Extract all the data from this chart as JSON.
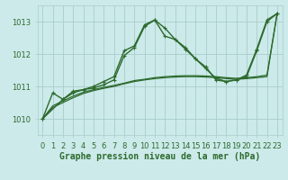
{
  "background_color": "#cceaea",
  "grid_color": "#aacccc",
  "line_color": "#2d6a2d",
  "x_labels": [
    "0",
    "1",
    "2",
    "3",
    "4",
    "5",
    "6",
    "7",
    "8",
    "9",
    "10",
    "11",
    "12",
    "13",
    "14",
    "15",
    "16",
    "17",
    "18",
    "19",
    "20",
    "21",
    "22",
    "23"
  ],
  "xlabel": "Graphe pression niveau de la mer (hPa)",
  "ylim": [
    1009.5,
    1013.5
  ],
  "yticks": [
    1010,
    1011,
    1012,
    1013
  ],
  "series": [
    {
      "x": [
        0,
        1,
        2,
        3,
        4,
        5,
        6,
        7,
        8,
        9,
        10,
        11,
        12,
        13,
        14,
        15,
        16,
        17,
        18,
        19,
        20,
        21,
        22,
        23
      ],
      "y": [
        1010.0,
        1010.8,
        1010.6,
        1010.85,
        1010.9,
        1011.0,
        1011.15,
        1011.3,
        1012.1,
        1012.25,
        1012.9,
        1013.05,
        1012.8,
        1012.45,
        1012.2,
        1011.85,
        1011.6,
        1011.2,
        1011.15,
        1011.2,
        1011.35,
        1012.15,
        1013.05,
        1013.25
      ],
      "marker": true,
      "lw": 1.0
    },
    {
      "x": [
        0,
        2,
        3,
        4,
        5,
        6,
        7,
        8,
        9,
        10,
        11,
        12,
        13,
        14,
        15,
        16,
        17,
        18,
        19,
        20,
        21,
        22,
        23
      ],
      "y": [
        1010.0,
        1010.6,
        1010.8,
        1010.9,
        1010.95,
        1011.05,
        1011.2,
        1011.95,
        1012.2,
        1012.85,
        1013.05,
        1012.55,
        1012.45,
        1012.15,
        1011.85,
        1011.55,
        1011.25,
        1011.15,
        1011.2,
        1011.3,
        1012.1,
        1013.0,
        1013.25
      ],
      "marker": true,
      "lw": 1.0
    },
    {
      "x": [
        0,
        1,
        2,
        3,
        4,
        5,
        6,
        7,
        8,
        9,
        10,
        11,
        12,
        13,
        14,
        15,
        16,
        17,
        18,
        19,
        20,
        21,
        22,
        23
      ],
      "y": [
        1010.0,
        1010.4,
        1010.55,
        1010.7,
        1010.82,
        1010.9,
        1010.97,
        1011.03,
        1011.1,
        1011.18,
        1011.22,
        1011.27,
        1011.3,
        1011.32,
        1011.33,
        1011.33,
        1011.32,
        1011.3,
        1011.27,
        1011.25,
        1011.27,
        1011.3,
        1011.35,
        1013.25
      ],
      "marker": false,
      "lw": 0.9
    },
    {
      "x": [
        0,
        1,
        2,
        3,
        4,
        5,
        6,
        7,
        8,
        9,
        10,
        11,
        12,
        13,
        14,
        15,
        16,
        17,
        18,
        19,
        20,
        21,
        22,
        23
      ],
      "y": [
        1010.0,
        1010.35,
        1010.5,
        1010.65,
        1010.78,
        1010.87,
        1010.94,
        1011.0,
        1011.08,
        1011.15,
        1011.2,
        1011.24,
        1011.27,
        1011.29,
        1011.3,
        1011.3,
        1011.29,
        1011.27,
        1011.24,
        1011.22,
        1011.24,
        1011.27,
        1011.3,
        1013.25
      ],
      "marker": false,
      "lw": 0.9
    }
  ],
  "font_color": "#2d6a2d",
  "font_size_label": 7,
  "font_size_tick": 6,
  "tick_label_color": "#2d6a2d"
}
